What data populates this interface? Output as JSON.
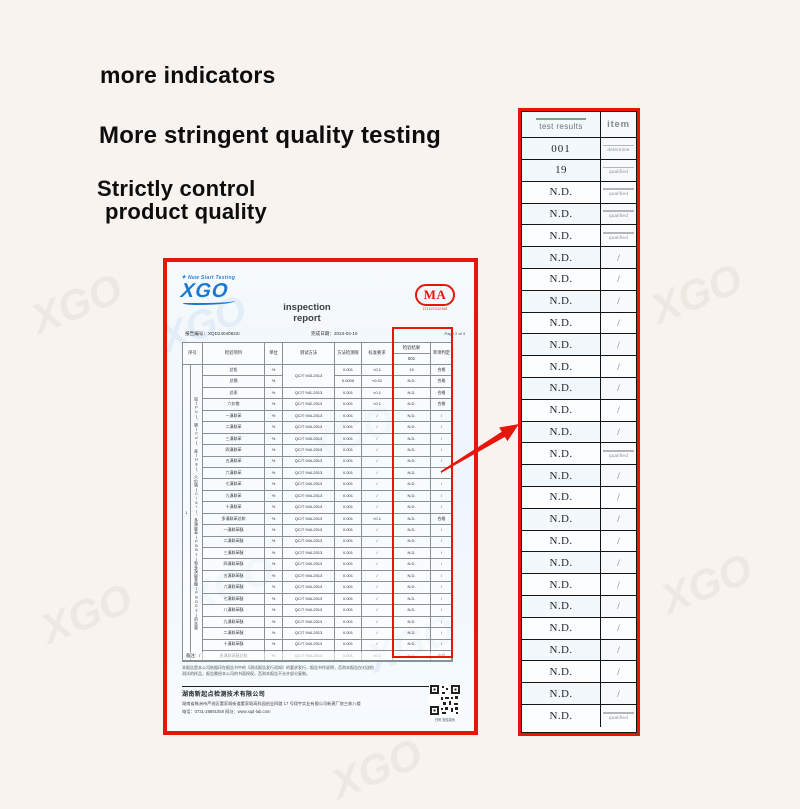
{
  "headings": {
    "line1": "more indicators",
    "line2": "More stringent quality testing",
    "line3a": "Strictly control",
    "line3b": "product quality"
  },
  "colors": {
    "accent_red": "#e8150d",
    "brand_blue": "#1b77cf"
  },
  "document": {
    "logo": {
      "brand": "XGO",
      "tagline": "New Start Testing",
      "star": "✦"
    },
    "cma": {
      "label": "MA",
      "number": "221622342368"
    },
    "title_line1": "inspection",
    "title_line2": "report",
    "report_no": "报告编号：XQD24040822I",
    "date": "完成日期：2024-04-10",
    "page": "Page 2 of 3",
    "table": {
      "headers": [
        "序号",
        "检验项目",
        "单位",
        "测试方法",
        "方法检测限",
        "标准要求",
        "检验结果",
        "单项判定"
      ],
      "result_subheader": "001",
      "group_no": "1",
      "group_label": "铅(Pb)、镉(Cd)、汞(Hg)、六价铬(Cr6+)、多溴联苯(PBBs)和多溴联苯醚(PBDEs)的含量",
      "rows": [
        {
          "item": "总铅",
          "unit": "%",
          "method": "QC/T 943-2013",
          "method_rowspan": 2,
          "limit": "0.001",
          "standard": "<0.1",
          "result": "19",
          "verdict": "合格"
        },
        {
          "item": "总镉",
          "unit": "%",
          "method": null,
          "limit": "0.0005",
          "standard": "<0.01",
          "result": "N.D.",
          "verdict": "合格"
        },
        {
          "item": "总汞",
          "unit": "%",
          "method": "QC/T 941-2013",
          "limit": "0.001",
          "standard": "<0.1",
          "result": "N.D.",
          "verdict": "合格"
        },
        {
          "item": "六价铬",
          "unit": "%",
          "method": "QC/T 942-2013",
          "limit": "0.001",
          "standard": "<0.1",
          "result": "N.D.",
          "verdict": "合格"
        },
        {
          "item": "一溴联苯",
          "unit": "%",
          "method": "QC/T 944-2013",
          "limit": "0.001",
          "standard": "/",
          "result": "N.D.",
          "verdict": "/"
        },
        {
          "item": "二溴联苯",
          "unit": "%",
          "method": "QC/T 944-2013",
          "limit": "0.001",
          "standard": "/",
          "result": "N.D.",
          "verdict": "/"
        },
        {
          "item": "三溴联苯",
          "unit": "%",
          "method": "QC/T 944-2013",
          "limit": "0.001",
          "standard": "/",
          "result": "N.D.",
          "verdict": "/"
        },
        {
          "item": "四溴联苯",
          "unit": "%",
          "method": "QC/T 944-2013",
          "limit": "0.001",
          "standard": "/",
          "result": "N.D.",
          "verdict": "/"
        },
        {
          "item": "五溴联苯",
          "unit": "%",
          "method": "QC/T 944-2013",
          "limit": "0.001",
          "standard": "/",
          "result": "N.D.",
          "verdict": "/"
        },
        {
          "item": "六溴联苯",
          "unit": "%",
          "method": "QC/T 944-2013",
          "limit": "0.001",
          "standard": "/",
          "result": "N.D.",
          "verdict": "/"
        },
        {
          "item": "七溴联苯",
          "unit": "%",
          "method": "QC/T 944-2013",
          "limit": "0.001",
          "standard": "/",
          "result": "N.D.",
          "verdict": "/"
        },
        {
          "item": "九溴联苯",
          "unit": "%",
          "method": "QC/T 944-2013",
          "limit": "0.001",
          "standard": "/",
          "result": "N.D.",
          "verdict": "/"
        },
        {
          "item": "十溴联苯",
          "unit": "%",
          "method": "QC/T 944-2013",
          "limit": "0.001",
          "standard": "/",
          "result": "N.D.",
          "verdict": "/"
        },
        {
          "item": "多溴联苯总和",
          "unit": "%",
          "method": "QC/T 944-2013",
          "limit": "0.001",
          "standard": "<0.1",
          "result": "N.D.",
          "verdict": "合格"
        },
        {
          "item": "一溴联苯醚",
          "unit": "%",
          "method": "QC/T 944-2013",
          "limit": "0.001",
          "standard": "/",
          "result": "N.D.",
          "verdict": "/"
        },
        {
          "item": "二溴联苯醚",
          "unit": "%",
          "method": "QC/T 944-2013",
          "limit": "0.001",
          "standard": "/",
          "result": "N.D.",
          "verdict": "/"
        },
        {
          "item": "三溴联苯醚",
          "unit": "%",
          "method": "QC/T 944-2013",
          "limit": "0.001",
          "standard": "/",
          "result": "N.D.",
          "verdict": "/"
        },
        {
          "item": "四溴联苯醚",
          "unit": "%",
          "method": "QC/T 944-2013",
          "limit": "0.001",
          "standard": "/",
          "result": "N.D.",
          "verdict": "/"
        },
        {
          "item": "五溴联苯醚",
          "unit": "%",
          "method": "QC/T 944-2013",
          "limit": "0.001",
          "standard": "/",
          "result": "N.D.",
          "verdict": "/"
        },
        {
          "item": "六溴联苯醚",
          "unit": "%",
          "method": "QC/T 944-2013",
          "limit": "0.001",
          "standard": "/",
          "result": "N.D.",
          "verdict": "/"
        },
        {
          "item": "七溴联苯醚",
          "unit": "%",
          "method": "QC/T 944-2013",
          "limit": "0.001",
          "standard": "/",
          "result": "N.D.",
          "verdict": "/"
        },
        {
          "item": "八溴联苯醚",
          "unit": "%",
          "method": "QC/T 944-2013",
          "limit": "0.001",
          "standard": "/",
          "result": "N.D.",
          "verdict": "/"
        },
        {
          "item": "九溴联苯醚",
          "unit": "%",
          "method": "QC/T 944-2013",
          "limit": "0.001",
          "standard": "/",
          "result": "N.D.",
          "verdict": "/"
        },
        {
          "item": "二溴联苯醚",
          "unit": "%",
          "method": "QC/T 944-2013",
          "limit": "0.001",
          "standard": "/",
          "result": "N.D.",
          "verdict": "/"
        },
        {
          "item": "十溴联苯醚",
          "unit": "%",
          "method": "QC/T 944-2013",
          "limit": "0.001",
          "standard": "/",
          "result": "N.D.",
          "verdict": "/"
        },
        {
          "item": "多溴联苯醚总和",
          "unit": "%",
          "method": "QC/T 944-2013",
          "limit": "0.001",
          "standard": "<0.1",
          "result": "N.D.",
          "verdict": "合格"
        }
      ]
    },
    "remarks": "备注：/",
    "disclaimer1": "本报告是本公司依据印在报告书中的《测试报告发行须知》的要求发行，报告书作说明，否则本报告仅对送检",
    "disclaimer2": "测试的样品，报告需经本公司的书面授权，否则本报告不允许部分复制。",
    "company": "湖南新起点检测技术有限公司",
    "address": "湖南省株洲市芦淞区董家塅街道董家塅高科园创业四路 17 号翔宇实业有限公司新建厂房三栋八楼",
    "contact": "电话：0731-28891058 网址：www.xqd-lab.com",
    "qr_caption": "扫码 查验真伪"
  },
  "panel": {
    "col1_header": "test results",
    "col2_header": "item",
    "col2_subheader": "determine",
    "sample_id": "001",
    "rows": [
      {
        "result": "19",
        "verdict": "qualified"
      },
      {
        "result": "N.D.",
        "verdict": "qualified"
      },
      {
        "result": "N.D.",
        "verdict": "qualified"
      },
      {
        "result": "N.D.",
        "verdict": "qualified"
      },
      {
        "result": "N.D.",
        "verdict": "/"
      },
      {
        "result": "N.D.",
        "verdict": "/"
      },
      {
        "result": "N.D.",
        "verdict": "/"
      },
      {
        "result": "N.D.",
        "verdict": "/"
      },
      {
        "result": "N.D.",
        "verdict": "/"
      },
      {
        "result": "N.D.",
        "verdict": "/"
      },
      {
        "result": "N.D.",
        "verdict": "/"
      },
      {
        "result": "N.D.",
        "verdict": "/"
      },
      {
        "result": "N.D.",
        "verdict": "/"
      },
      {
        "result": "N.D.",
        "verdict": "qualified"
      },
      {
        "result": "N.D.",
        "verdict": "/"
      },
      {
        "result": "N.D.",
        "verdict": "/"
      },
      {
        "result": "N.D.",
        "verdict": "/"
      },
      {
        "result": "N.D.",
        "verdict": "/"
      },
      {
        "result": "N.D.",
        "verdict": "/"
      },
      {
        "result": "N.D.",
        "verdict": "/"
      },
      {
        "result": "N.D.",
        "verdict": "/"
      },
      {
        "result": "N.D.",
        "verdict": "/"
      },
      {
        "result": "N.D.",
        "verdict": "/"
      },
      {
        "result": "N.D.",
        "verdict": "/"
      },
      {
        "result": "N.D.",
        "verdict": "/"
      },
      {
        "result": "N.D.",
        "verdict": "qualified"
      }
    ],
    "watermarks": [
      "XGO",
      "XGO",
      "XGO",
      "XGO",
      "XGO",
      "XGO",
      "XGO",
      "XGO",
      "XGO"
    ]
  }
}
